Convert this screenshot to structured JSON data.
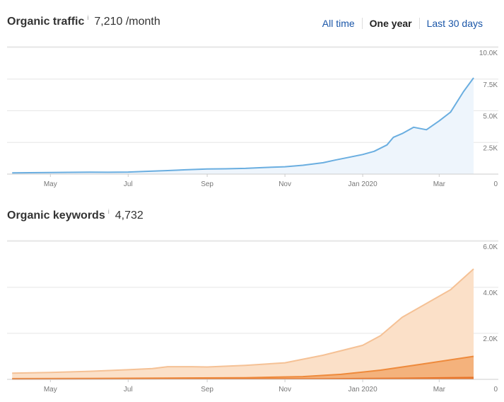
{
  "traffic": {
    "title": "Organic traffic",
    "info_icon": "i",
    "value": "7,210 /month"
  },
  "range_tabs": [
    {
      "label": "All time",
      "active": false
    },
    {
      "label": "One year",
      "active": true
    },
    {
      "label": "Last 30 days",
      "active": false
    }
  ],
  "keywords": {
    "title": "Organic keywords",
    "info_icon": "i",
    "value": "4,732"
  },
  "colors": {
    "traffic_line": "#6aaee0",
    "traffic_fill": "#eef5fc",
    "kw_light": "#fbe0c8",
    "kw_light_line": "#f5c195",
    "kw_mid": "#f4b27c",
    "kw_mid_line": "#ee8a3c",
    "kw_dark": "#e8762c"
  },
  "chart_data": [
    {
      "type": "area",
      "title": "Organic traffic",
      "x_ticks": [
        "May",
        "Jul",
        "Sep",
        "Nov",
        "Jan 2020",
        "Mar"
      ],
      "y_ticks": [
        "0",
        "2.5K",
        "5.0K",
        "7.5K",
        "10.0K"
      ],
      "ylim": [
        0,
        10000
      ],
      "grid": true,
      "series": [
        {
          "x": [
            "2019-04-01",
            "2019-04-15",
            "2019-05-01",
            "2019-05-15",
            "2019-06-01",
            "2019-06-15",
            "2019-07-01",
            "2019-07-15",
            "2019-08-01",
            "2019-08-15",
            "2019-09-01",
            "2019-09-15",
            "2019-10-01",
            "2019-10-15",
            "2019-11-01",
            "2019-11-15",
            "2019-12-01",
            "2019-12-10",
            "2019-12-20",
            "2020-01-01",
            "2020-01-10",
            "2020-01-20",
            "2020-01-25",
            "2020-02-01",
            "2020-02-10",
            "2020-02-20",
            "2020-03-01",
            "2020-03-10",
            "2020-03-20",
            "2020-03-28"
          ],
          "values": [
            100,
            110,
            130,
            140,
            150,
            145,
            160,
            220,
            280,
            340,
            400,
            420,
            450,
            520,
            580,
            700,
            900,
            1100,
            1300,
            1550,
            1800,
            2300,
            2900,
            3200,
            3700,
            3500,
            4200,
            4900,
            6500,
            7600
          ]
        }
      ]
    },
    {
      "type": "area",
      "title": "Organic keywords",
      "x_ticks": [
        "May",
        "Jul",
        "Sep",
        "Nov",
        "Jan 2020",
        "Mar"
      ],
      "y_ticks": [
        "0",
        "2.0K",
        "4.0K",
        "6.0K"
      ],
      "ylim": [
        0,
        6000
      ],
      "grid": true,
      "series": [
        {
          "x": [
            "2019-04-01",
            "2019-05-01",
            "2019-06-01",
            "2019-07-01",
            "2019-07-20",
            "2019-08-01",
            "2019-08-20",
            "2019-09-01",
            "2019-10-01",
            "2019-11-01",
            "2019-12-01",
            "2020-01-01",
            "2020-01-15",
            "2020-02-01",
            "2020-02-20",
            "2020-03-10",
            "2020-03-28"
          ],
          "values": [
            270,
            300,
            350,
            420,
            470,
            550,
            550,
            540,
            610,
            720,
            1050,
            1480,
            1900,
            2700,
            3300,
            3900,
            4800
          ]
        },
        {
          "x": [
            "2019-04-01",
            "2019-06-01",
            "2019-08-01",
            "2019-10-01",
            "2019-11-15",
            "2019-12-15",
            "2020-01-15",
            "2020-02-15",
            "2020-03-28"
          ],
          "values": [
            30,
            40,
            55,
            70,
            120,
            220,
            400,
            650,
            1000
          ]
        },
        {
          "x": [
            "2019-04-01",
            "2019-08-01",
            "2019-12-01",
            "2020-02-01",
            "2020-03-28"
          ],
          "values": [
            10,
            15,
            25,
            45,
            80
          ]
        }
      ]
    }
  ]
}
